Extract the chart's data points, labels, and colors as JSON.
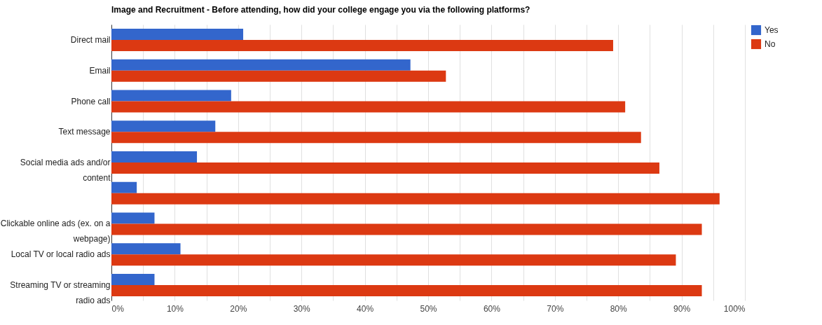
{
  "chart_data": {
    "type": "bar",
    "orientation": "horizontal",
    "title": "Image and Recruitment - Before attending, how did your college engage you via the following platforms?",
    "categories": [
      "Direct mail",
      "Email",
      "Phone call",
      "Text message",
      "Social media ads and/or content",
      null,
      "Clickable online ads (ex. on a webpage)",
      "Local TV or local radio ads",
      "Streaming TV or streaming radio ads"
    ],
    "series": [
      {
        "name": "Yes",
        "color": "#3366cc",
        "values": [
          20.8,
          47.2,
          18.9,
          16.4,
          13.5,
          4.0,
          6.8,
          10.9,
          6.8
        ]
      },
      {
        "name": "No",
        "color": "#dc3912",
        "values": [
          79.2,
          52.8,
          81.1,
          83.6,
          86.5,
          96.0,
          93.2,
          89.1,
          93.2
        ]
      }
    ],
    "xlim": [
      0,
      100
    ],
    "xticks": [
      {
        "value": 0,
        "label": "0%"
      },
      {
        "value": 5,
        "label": null
      },
      {
        "value": 10,
        "label": "10%"
      },
      {
        "value": 15,
        "label": null
      },
      {
        "value": 20,
        "label": "20%"
      },
      {
        "value": 25,
        "label": null
      },
      {
        "value": 30,
        "label": "30%"
      },
      {
        "value": 35,
        "label": null
      },
      {
        "value": 40,
        "label": "40%"
      },
      {
        "value": 45,
        "label": null
      },
      {
        "value": 50,
        "label": "50%"
      },
      {
        "value": 55,
        "label": null
      },
      {
        "value": 60,
        "label": "60%"
      },
      {
        "value": 65,
        "label": null
      },
      {
        "value": 70,
        "label": "70%"
      },
      {
        "value": 75,
        "label": null
      },
      {
        "value": 80,
        "label": "80%"
      },
      {
        "value": 85,
        "label": null
      },
      {
        "value": 90,
        "label": "90%"
      },
      {
        "value": 95,
        "label": null
      },
      {
        "value": 100,
        "label": "100%"
      }
    ],
    "grid": true,
    "legend": "top right"
  }
}
